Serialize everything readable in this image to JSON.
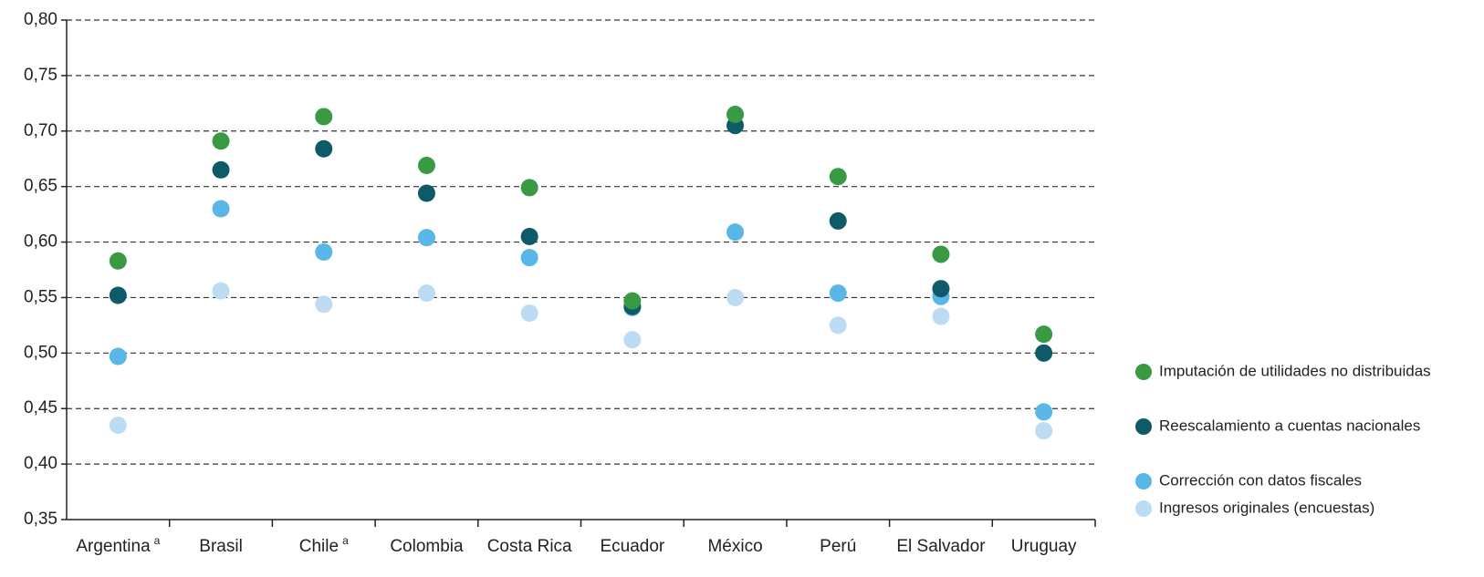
{
  "chart_data": {
    "type": "scatter",
    "categories": [
      "Argentina",
      "Brasil",
      "Chile",
      "Colombia",
      "Costa Rica",
      "Ecuador",
      "México",
      "Perú",
      "El Salvador",
      "Uruguay"
    ],
    "category_superscripts": [
      "a",
      null,
      "a",
      null,
      null,
      null,
      null,
      null,
      null,
      null
    ],
    "series": [
      {
        "name": "Imputación de utilidades no distribuidas",
        "color": "#3a9a44",
        "values": [
          0.583,
          0.691,
          0.713,
          0.669,
          0.649,
          0.547,
          0.715,
          0.659,
          0.589,
          0.517
        ]
      },
      {
        "name": "Reescalamiento a cuentas nacionales",
        "color": "#0f5a68",
        "values": [
          0.552,
          0.665,
          0.684,
          0.644,
          0.605,
          0.542,
          0.705,
          0.619,
          0.558,
          0.5
        ]
      },
      {
        "name": "Corrección con datos fiscales",
        "color": "#58b7e6",
        "values": [
          0.497,
          0.63,
          0.591,
          0.604,
          0.586,
          0.541,
          0.609,
          0.554,
          0.551,
          0.447
        ]
      },
      {
        "name": "Ingresos originales (encuestas)",
        "color": "#bcdcf3",
        "values": [
          0.435,
          0.556,
          0.544,
          0.554,
          0.536,
          0.512,
          0.55,
          0.525,
          0.533,
          0.43
        ]
      }
    ],
    "ylim": [
      0.35,
      0.8
    ],
    "yticks": [
      {
        "value": 0.35,
        "label": "0,35"
      },
      {
        "value": 0.4,
        "label": "0,40"
      },
      {
        "value": 0.45,
        "label": "0,45"
      },
      {
        "value": 0.5,
        "label": "0,50"
      },
      {
        "value": 0.55,
        "label": "0,55"
      },
      {
        "value": 0.6,
        "label": "0,60"
      },
      {
        "value": 0.65,
        "label": "0,65"
      },
      {
        "value": 0.7,
        "label": "0,70"
      },
      {
        "value": 0.75,
        "label": "0,75"
      },
      {
        "value": 0.8,
        "label": "0,80"
      }
    ],
    "grid": true
  }
}
